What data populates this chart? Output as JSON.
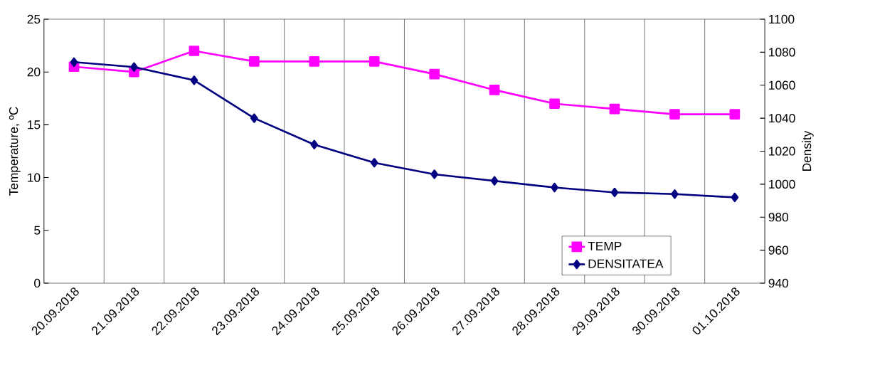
{
  "chart_data": {
    "type": "line",
    "categories": [
      "20.09.2018",
      "21.09.2018",
      "22.09.2018",
      "23.09.2018",
      "24.09.2018",
      "25.09.2018",
      "26.09.2018",
      "27.09.2018",
      "28.09.2018",
      "29.09.2018",
      "30.09.2018",
      "01.10.2018"
    ],
    "series": [
      {
        "name": "TEMP",
        "color": "#ff00ff",
        "marker": "square",
        "values": [
          20.5,
          20.0,
          22.0,
          21.0,
          21.0,
          21.0,
          19.8,
          18.3,
          17.0,
          16.5,
          16.0,
          16.0
        ]
      },
      {
        "name": "DENSITATEA",
        "color": "#000080",
        "marker": "diamond",
        "axis": "y2",
        "values": [
          1074,
          1071,
          1063,
          1040,
          1024,
          1013,
          1006,
          1002,
          998,
          995,
          994,
          992
        ]
      }
    ],
    "ylabel": "Temperature, ºC",
    "y2label": "Density",
    "ylim": [
      0,
      25
    ],
    "yticks": [
      0,
      5,
      10,
      15,
      20,
      25
    ],
    "y2lim": [
      940,
      1100
    ],
    "y2ticks": [
      940,
      960,
      980,
      1000,
      1020,
      1040,
      1060,
      1080,
      1100
    ],
    "grid": "x",
    "legend": "bottom right",
    "line_style": "solid"
  }
}
